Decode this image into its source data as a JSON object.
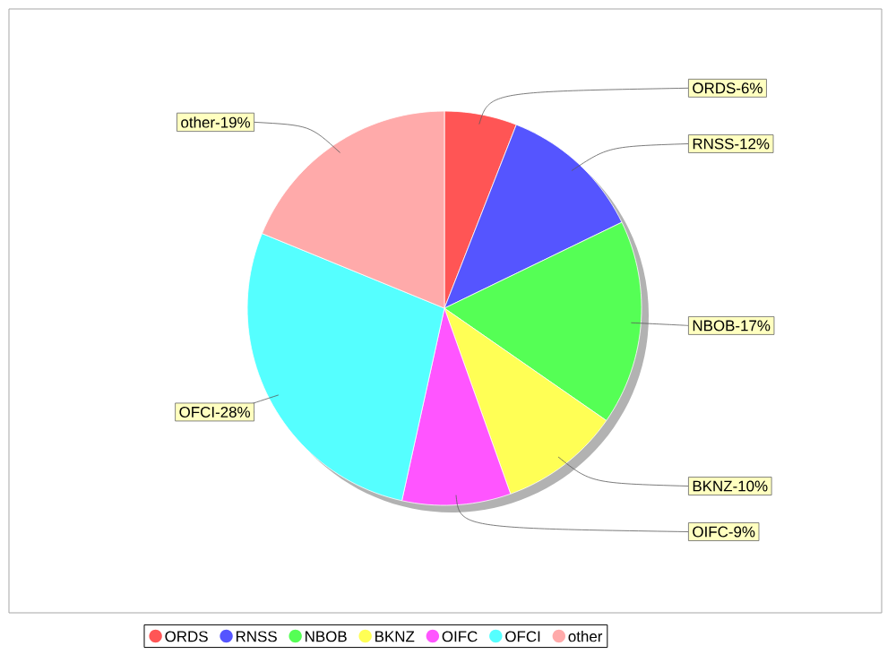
{
  "chart_data": {
    "type": "pie",
    "categories": [
      "ORDS",
      "RNSS",
      "NBOB",
      "BKNZ",
      "OIFC",
      "OFCI",
      "other"
    ],
    "values": [
      6,
      12,
      17,
      10,
      9,
      28,
      19
    ],
    "colors": [
      "#ff5555",
      "#5555ff",
      "#55ff55",
      "#ffff55",
      "#ff55ff",
      "#55ffff",
      "#ffaaaa"
    ],
    "value_labels": [
      "ORDS-6%",
      "RNSS-12%",
      "NBOB-17%",
      "BKNZ-10%",
      "OIFC-9%",
      "OFCI-28%",
      "other-19%"
    ],
    "legend": "bottom"
  }
}
